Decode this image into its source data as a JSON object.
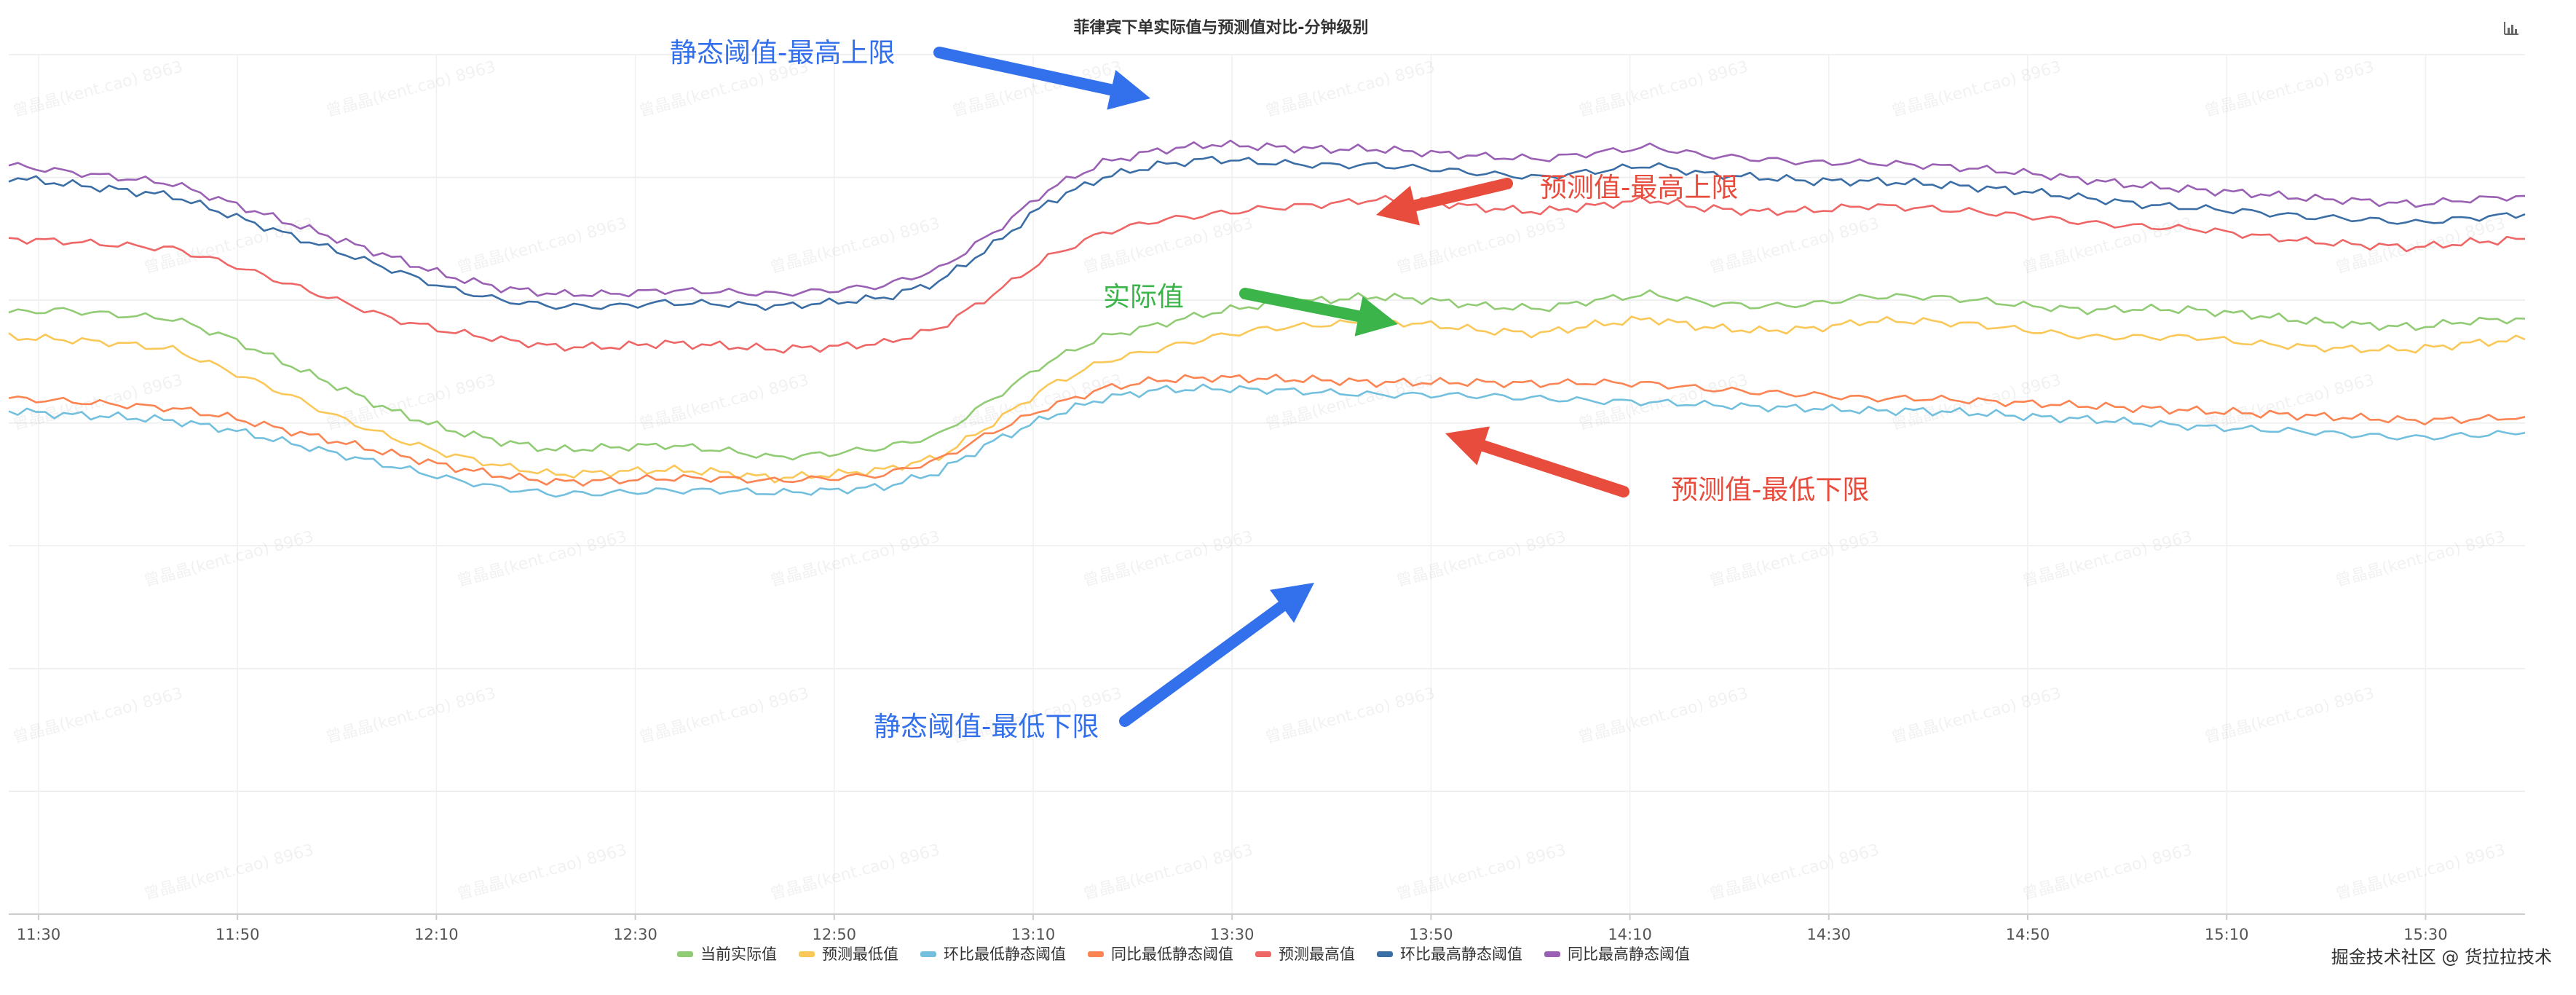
{
  "chart_data": {
    "type": "line",
    "title": "菲律宾下单实际值与预测值对比-分钟级别",
    "x_ticks": [
      "11:30",
      "11:50",
      "12:10",
      "12:30",
      "12:50",
      "13:10",
      "13:30",
      "13:50",
      "14:10",
      "14:30",
      "14:50",
      "15:10",
      "15:30"
    ],
    "x_range": [
      "11:27",
      "15:40"
    ],
    "grid": true,
    "legend_position": "bottom",
    "series": [
      {
        "name": "当前实际值",
        "color": "#91cc75",
        "values": [
          490,
          492,
          488,
          485,
          470,
          450,
          430,
          410,
          395,
          385,
          378,
          380,
          382,
          378,
          372,
          375,
          380,
          390,
          420,
          450,
          470,
          480,
          490,
          497,
          500,
          503,
          500,
          495,
          493,
          500,
          505,
          498,
          495,
          497,
          503,
          503,
          500,
          495,
          492,
          493,
          492,
          488,
          483,
          480,
          478,
          483,
          485
        ]
      },
      {
        "name": "预测最低值",
        "color": "#fac858",
        "values": [
          470,
          468,
          465,
          460,
          443,
          425,
          405,
          388,
          375,
          365,
          358,
          360,
          362,
          360,
          355,
          358,
          362,
          372,
          400,
          430,
          450,
          460,
          470,
          477,
          480,
          483,
          480,
          475,
          473,
          480,
          485,
          478,
          475,
          477,
          483,
          483,
          480,
          475,
          470,
          470,
          470,
          465,
          462,
          460,
          460,
          465,
          468
        ]
      },
      {
        "name": "环比最低静态阈值",
        "color": "#73c0de",
        "values": [
          410,
          407,
          405,
          402,
          395,
          385,
          375,
          365,
          355,
          347,
          342,
          343,
          345,
          345,
          343,
          345,
          348,
          360,
          385,
          405,
          420,
          427,
          428,
          427,
          425,
          423,
          423,
          422,
          420,
          418,
          417,
          415,
          413,
          412,
          410,
          410,
          408,
          405,
          403,
          400,
          397,
          395,
          393,
          390,
          388,
          390,
          392
        ]
      },
      {
        "name": "同比最低静态阈值",
        "color": "#fc8452",
        "values": [
          420,
          418,
          415,
          412,
          405,
          395,
          385,
          375,
          365,
          357,
          352,
          353,
          355,
          355,
          353,
          355,
          358,
          370,
          393,
          413,
          428,
          435,
          437,
          436,
          435,
          433,
          433,
          433,
          432,
          433,
          432,
          428,
          425,
          423,
          420,
          420,
          418,
          416,
          414,
          412,
          410,
          408,
          406,
          404,
          402,
          403,
          405
        ]
      },
      {
        "name": "预测最高值",
        "color": "#ee6666",
        "values": [
          550,
          548,
          545,
          542,
          530,
          515,
          500,
          485,
          475,
          468,
          462,
          462,
          465,
          463,
          460,
          462,
          465,
          477,
          505,
          535,
          555,
          565,
          570,
          575,
          578,
          582,
          580,
          575,
          572,
          577,
          582,
          575,
          572,
          573,
          577,
          575,
          572,
          568,
          563,
          560,
          558,
          553,
          548,
          545,
          543,
          547,
          550
        ]
      },
      {
        "name": "环比最高静态阈值",
        "color": "#3a6ea5",
        "values": [
          600,
          595,
          590,
          585,
          570,
          555,
          540,
          525,
          510,
          500,
          495,
          495,
          498,
          497,
          495,
          498,
          502,
          515,
          545,
          580,
          600,
          610,
          615,
          612,
          610,
          610,
          607,
          603,
          600,
          605,
          610,
          603,
          600,
          597,
          597,
          595,
          592,
          588,
          583,
          578,
          575,
          572,
          568,
          566,
          563,
          567,
          570
        ]
      },
      {
        "name": "同比最高静态阈值",
        "color": "#9a60b4",
        "values": [
          610,
          605,
          600,
          595,
          580,
          565,
          550,
          535,
          520,
          510,
          505,
          505,
          508,
          507,
          505,
          508,
          512,
          525,
          555,
          590,
          612,
          622,
          627,
          625,
          623,
          623,
          620,
          617,
          615,
          620,
          625,
          618,
          615,
          612,
          612,
          610,
          607,
          603,
          598,
          593,
          590,
          587,
          583,
          581,
          578,
          582,
          585
        ]
      }
    ]
  },
  "annotations": [
    {
      "text": "静态阈值-最高上限",
      "color": "#3370eb"
    },
    {
      "text": "预测值-最高上限",
      "color": "#e74c3c"
    },
    {
      "text": "实际值",
      "color": "#3bb54a"
    },
    {
      "text": "预测值-最低下限",
      "color": "#e74c3c"
    },
    {
      "text": "静态阈值-最低下限",
      "color": "#3370eb"
    }
  ],
  "footer": {
    "text": "掘金技术社区 @ 货拉拉技术"
  },
  "toolbar": {
    "icon": "bar-chart-icon"
  }
}
